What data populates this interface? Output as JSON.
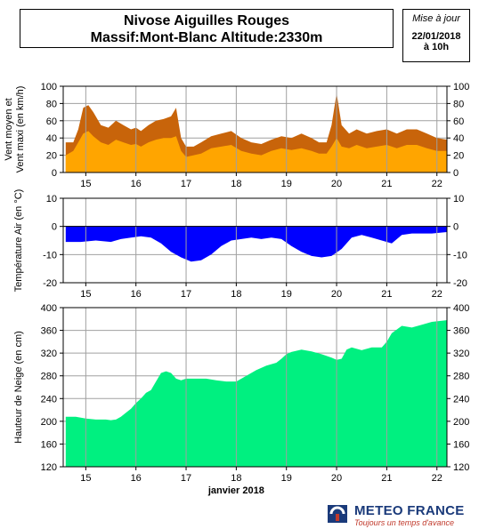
{
  "header": {
    "title_line1": "Nivose Aiguilles Rouges",
    "title_line2": "Massif:Mont-Blanc Altitude:2330m",
    "update_label": "Mise à jour",
    "update_date": "22/01/2018",
    "update_time": "à 10h"
  },
  "footer": {
    "brand": "METEO FRANCE",
    "tagline": "Toujours un temps d'avance"
  },
  "colors": {
    "wind_max": "#c8640a",
    "wind_mean": "#ffa500",
    "temperature": "#0000ff",
    "snow": "#00f080",
    "grid": "#a0a0a0"
  },
  "chart_data": [
    {
      "type": "area",
      "id": "wind",
      "ylabel_line1": "Vent moyen et",
      "ylabel_line2": "Vent maxi (en km/h)",
      "ylim": [
        0,
        100
      ],
      "yticks": [
        0,
        20,
        40,
        60,
        80,
        100
      ],
      "xlim": [
        14.55,
        22.2
      ],
      "xticks": [
        15,
        16,
        17,
        18,
        19,
        20,
        21,
        22
      ],
      "grid": true,
      "series": [
        {
          "name": "Vent maxi",
          "x": [
            14.6,
            14.75,
            14.85,
            14.95,
            15.05,
            15.15,
            15.3,
            15.45,
            15.6,
            15.75,
            15.9,
            16.0,
            16.1,
            16.25,
            16.4,
            16.55,
            16.7,
            16.8,
            16.9,
            17.0,
            17.15,
            17.3,
            17.5,
            17.7,
            17.9,
            18.1,
            18.3,
            18.5,
            18.7,
            18.9,
            19.1,
            19.3,
            19.5,
            19.65,
            19.8,
            19.9,
            20.0,
            20.1,
            20.25,
            20.4,
            20.6,
            20.8,
            21.0,
            21.2,
            21.4,
            21.6,
            21.8,
            22.0,
            22.2
          ],
          "y": [
            35,
            35,
            50,
            75,
            78,
            70,
            55,
            52,
            60,
            55,
            50,
            52,
            48,
            55,
            60,
            62,
            65,
            75,
            40,
            30,
            30,
            35,
            42,
            45,
            48,
            40,
            35,
            33,
            38,
            42,
            40,
            45,
            40,
            35,
            35,
            55,
            92,
            55,
            45,
            50,
            45,
            48,
            50,
            45,
            50,
            50,
            45,
            40,
            38
          ]
        },
        {
          "name": "Vent moyen",
          "x": [
            14.6,
            14.75,
            14.85,
            14.95,
            15.05,
            15.15,
            15.3,
            15.45,
            15.6,
            15.75,
            15.9,
            16.0,
            16.1,
            16.25,
            16.4,
            16.55,
            16.7,
            16.8,
            16.9,
            17.0,
            17.15,
            17.3,
            17.5,
            17.7,
            17.9,
            18.1,
            18.3,
            18.5,
            18.7,
            18.9,
            19.1,
            19.3,
            19.5,
            19.65,
            19.8,
            19.9,
            20.0,
            20.1,
            20.25,
            20.4,
            20.6,
            20.8,
            21.0,
            21.2,
            21.4,
            21.6,
            21.8,
            22.0,
            22.2
          ],
          "y": [
            20,
            25,
            35,
            45,
            48,
            42,
            35,
            32,
            38,
            35,
            32,
            33,
            30,
            35,
            38,
            40,
            40,
            42,
            25,
            18,
            20,
            22,
            28,
            30,
            32,
            25,
            22,
            20,
            25,
            28,
            26,
            28,
            25,
            22,
            22,
            30,
            40,
            30,
            28,
            32,
            28,
            30,
            32,
            28,
            32,
            32,
            28,
            25,
            25
          ]
        }
      ]
    },
    {
      "type": "area",
      "id": "temperature",
      "ylabel": "Température Air (en °C)",
      "ylim": [
        -20,
        10
      ],
      "yticks": [
        -20,
        -10,
        0,
        10
      ],
      "xlim": [
        14.55,
        22.2
      ],
      "xticks": [
        15,
        16,
        17,
        18,
        19,
        20,
        21,
        22
      ],
      "grid": true,
      "series": [
        {
          "name": "Température",
          "x": [
            14.6,
            14.9,
            15.2,
            15.5,
            15.7,
            15.9,
            16.1,
            16.3,
            16.5,
            16.7,
            16.9,
            17.1,
            17.3,
            17.5,
            17.7,
            17.9,
            18.1,
            18.3,
            18.5,
            18.7,
            18.9,
            19.1,
            19.3,
            19.5,
            19.7,
            19.9,
            20.1,
            20.3,
            20.5,
            20.7,
            20.9,
            21.1,
            21.3,
            21.5,
            21.7,
            21.9,
            22.2
          ],
          "y": [
            -5.5,
            -5.5,
            -5,
            -5.5,
            -4.5,
            -4,
            -3.5,
            -4,
            -6,
            -9,
            -11,
            -12.5,
            -12,
            -10,
            -7,
            -5,
            -4.5,
            -4,
            -4.5,
            -4,
            -4.5,
            -7,
            -9,
            -10.5,
            -11,
            -10.5,
            -8,
            -4,
            -3,
            -4,
            -5,
            -6,
            -3,
            -2.5,
            -2.5,
            -2.5,
            -2
          ]
        }
      ]
    },
    {
      "type": "area",
      "id": "snow",
      "ylabel": "Hauteur de Neige (en cm)",
      "xlabel": "janvier 2018",
      "ylim": [
        120,
        400
      ],
      "yticks": [
        120,
        160,
        200,
        240,
        280,
        320,
        360,
        400
      ],
      "xlim": [
        14.55,
        22.2
      ],
      "xticks": [
        15,
        16,
        17,
        18,
        19,
        20,
        21,
        22
      ],
      "grid": true,
      "series": [
        {
          "name": "Hauteur de Neige",
          "x": [
            14.6,
            14.8,
            15.0,
            15.2,
            15.4,
            15.5,
            15.6,
            15.7,
            15.8,
            15.9,
            16.0,
            16.1,
            16.2,
            16.3,
            16.4,
            16.5,
            16.6,
            16.7,
            16.8,
            16.9,
            17.0,
            17.2,
            17.4,
            17.6,
            17.8,
            18.0,
            18.2,
            18.4,
            18.6,
            18.8,
            18.9,
            19.0,
            19.1,
            19.3,
            19.5,
            19.7,
            19.9,
            20.0,
            20.1,
            20.2,
            20.3,
            20.5,
            20.7,
            20.9,
            21.0,
            21.1,
            21.3,
            21.5,
            21.7,
            21.9,
            22.2
          ],
          "y": [
            208,
            208,
            205,
            203,
            203,
            202,
            203,
            208,
            215,
            222,
            232,
            240,
            250,
            255,
            270,
            285,
            288,
            285,
            275,
            272,
            275,
            275,
            275,
            272,
            270,
            270,
            280,
            290,
            298,
            303,
            310,
            318,
            322,
            326,
            323,
            318,
            312,
            308,
            310,
            326,
            330,
            325,
            330,
            330,
            340,
            355,
            368,
            365,
            370,
            375,
            378
          ]
        }
      ]
    }
  ]
}
